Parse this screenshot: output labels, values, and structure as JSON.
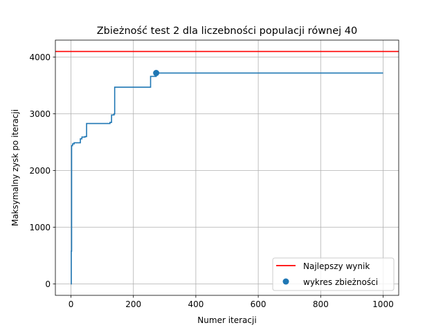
{
  "chart_data": {
    "type": "line",
    "title": "Zbieżność test 2 dla liczebności populacji równej 40",
    "xlabel": "Numer iteracji",
    "ylabel": "Maksymalny zysk po iteracji",
    "xlim": [
      -50,
      1050
    ],
    "ylim": [
      -200,
      4300
    ],
    "xticks": [
      0,
      200,
      400,
      600,
      800,
      1000
    ],
    "yticks": [
      0,
      1000,
      2000,
      3000,
      4000
    ],
    "grid": true,
    "legend_position": "lower right",
    "colors": {
      "line": "#1f77b4",
      "best": "#ff0000",
      "marker": "#1f77b4"
    },
    "best_value": 4100,
    "marker": {
      "x": 273,
      "y": 3720
    },
    "series": [
      {
        "name": "",
        "step": true,
        "x": [
          0,
          1,
          2,
          5,
          10,
          25,
          30,
          35,
          45,
          50,
          125,
          130,
          138,
          140,
          255,
          258,
          273,
          1000
        ],
        "y": [
          0,
          580,
          2440,
          2470,
          2490,
          2490,
          2560,
          2590,
          2600,
          2830,
          2850,
          2980,
          3000,
          3470,
          3660,
          3660,
          3720,
          3720
        ]
      }
    ],
    "legend": [
      {
        "label": "Najlepszy wynik",
        "kind": "line"
      },
      {
        "label": "wykres zbieżności",
        "kind": "marker"
      }
    ]
  }
}
